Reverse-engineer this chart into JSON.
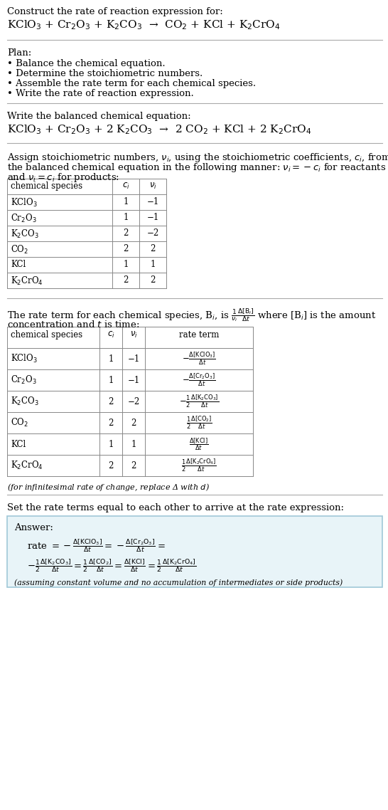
{
  "bg_color": "#ffffff",
  "text_color": "#000000",
  "title_line1": "Construct the rate of reaction expression for:",
  "title_eq": "KClO$_3$ + Cr$_2$O$_3$ + K$_2$CO$_3$  →  CO$_2$ + KCl + K$_2$CrO$_4$",
  "plan_header": "Plan:",
  "plan_items": [
    "• Balance the chemical equation.",
    "• Determine the stoichiometric numbers.",
    "• Assemble the rate term for each chemical species.",
    "• Write the rate of reaction expression."
  ],
  "balanced_header": "Write the balanced chemical equation:",
  "balanced_eq": "KClO$_3$ + Cr$_2$O$_3$ + 2 K$_2$CO$_3$  →  2 CO$_2$ + KCl + 2 K$_2$CrO$_4$",
  "assign_text1": "Assign stoichiometric numbers, $\\nu_i$, using the stoichiometric coefficients, $c_i$, from",
  "assign_text2": "the balanced chemical equation in the following manner: $\\nu_i = -c_i$ for reactants",
  "assign_text3": "and $\\nu_i = c_i$ for products:",
  "table1_headers": [
    "chemical species",
    "$c_i$",
    "$\\nu_i$"
  ],
  "table1_data": [
    [
      "KClO$_3$",
      "1",
      "−1"
    ],
    [
      "Cr$_2$O$_3$",
      "1",
      "−1"
    ],
    [
      "K$_2$CO$_3$",
      "2",
      "−2"
    ],
    [
      "CO$_2$",
      "2",
      "2"
    ],
    [
      "KCl",
      "1",
      "1"
    ],
    [
      "K$_2$CrO$_4$",
      "2",
      "2"
    ]
  ],
  "rate_text1": "The rate term for each chemical species, B$_i$, is $\\frac{1}{\\nu_i}\\frac{\\Delta[\\mathrm{B}_i]}{\\Delta t}$ where [B$_i$] is the amount",
  "rate_text2": "concentration and $t$ is time:",
  "table2_headers": [
    "chemical species",
    "$c_i$",
    "$\\nu_i$",
    "rate term"
  ],
  "table2_data": [
    [
      "KClO$_3$",
      "1",
      "−1",
      "$-\\frac{\\Delta[\\mathrm{KClO_3}]}{\\Delta t}$"
    ],
    [
      "Cr$_2$O$_3$",
      "1",
      "−1",
      "$-\\frac{\\Delta[\\mathrm{Cr_2O_3}]}{\\Delta t}$"
    ],
    [
      "K$_2$CO$_3$",
      "2",
      "−2",
      "$-\\frac{1}{2}\\frac{\\Delta[\\mathrm{K_2CO_3}]}{\\Delta t}$"
    ],
    [
      "CO$_2$",
      "2",
      "2",
      "$\\frac{1}{2}\\frac{\\Delta[\\mathrm{CO_2}]}{\\Delta t}$"
    ],
    [
      "KCl",
      "1",
      "1",
      "$\\frac{\\Delta[\\mathrm{KCl}]}{\\Delta t}$"
    ],
    [
      "K$_2$CrO$_4$",
      "2",
      "2",
      "$\\frac{1}{2}\\frac{\\Delta[\\mathrm{K_2CrO_4}]}{\\Delta t}$"
    ]
  ],
  "infinitesimal_note": "(for infinitesimal rate of change, replace Δ with $d$)",
  "set_text": "Set the rate terms equal to each other to arrive at the rate expression:",
  "answer_box_color": "#e8f4f8",
  "answer_border_color": "#a0c8d8",
  "answer_label": "Answer:",
  "answer_line1": "rate $= -\\frac{\\Delta[\\mathrm{KClO_3}]}{\\Delta t} = -\\frac{\\Delta[\\mathrm{Cr_2O_3}]}{\\Delta t} =$",
  "answer_line2": "$-\\frac{1}{2}\\frac{\\Delta[\\mathrm{K_2CO_3}]}{\\Delta t} = \\frac{1}{2}\\frac{\\Delta[\\mathrm{CO_2}]}{\\Delta t} = \\frac{\\Delta[\\mathrm{KCl}]}{\\Delta t} = \\frac{1}{2}\\frac{\\Delta[\\mathrm{K_2CrO_4}]}{\\Delta t}$",
  "answer_footnote": "(assuming constant volume and no accumulation of intermediates or side products)"
}
